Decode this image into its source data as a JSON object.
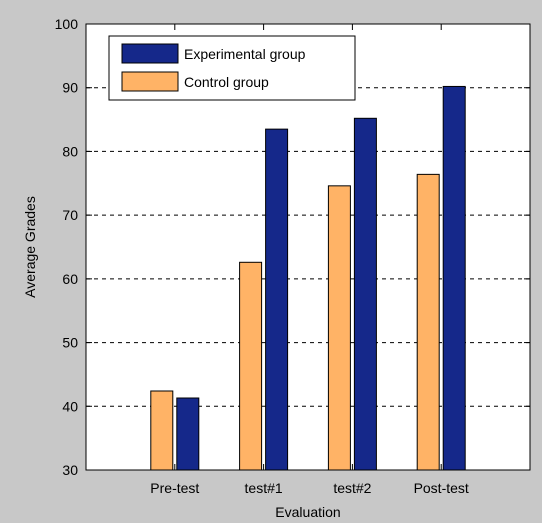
{
  "chart_data": {
    "type": "bar",
    "categories": [
      "Pre-test",
      "test#1",
      "test#2",
      "Post-test"
    ],
    "series": [
      {
        "name": "Experimental group",
        "values": [
          41.3,
          83.5,
          85.2,
          90.2
        ],
        "color": "#15288a"
      },
      {
        "name": "Control group",
        "values": [
          42.4,
          62.6,
          74.6,
          76.4
        ],
        "color": "#ffb366"
      }
    ],
    "xlabel": "Evaluation",
    "ylabel": "Average Grades",
    "ylim": [
      30,
      100
    ],
    "yticks": [
      30,
      40,
      50,
      60,
      70,
      80,
      90,
      100
    ],
    "grid": "horizontal-dashed",
    "legend_position": "top-left",
    "background": "#c8c8c8",
    "plot_background": "#ffffff"
  }
}
